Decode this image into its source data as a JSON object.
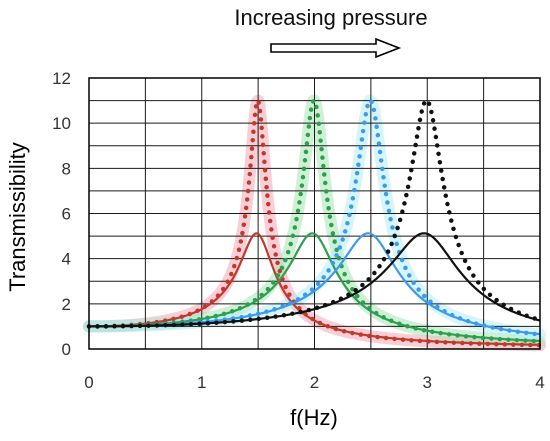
{
  "chart_data": {
    "type": "line",
    "annotation": "Increasing pressure",
    "xlabel": "f(Hz)",
    "ylabel": "Transmissibility",
    "xlim": [
      0,
      4
    ],
    "ylim": [
      0,
      12
    ],
    "x_ticks": [
      "0",
      "1",
      "2",
      "3",
      "4"
    ],
    "y_ticks": [
      "0",
      "2",
      "4",
      "6",
      "8",
      "10",
      "12"
    ],
    "grid": true,
    "series": [
      {
        "color": "#c0392b",
        "style": "dotted",
        "glow": "#f4a6b6",
        "peak_x": 1.5,
        "peak_y": 11.0
      },
      {
        "color": "#c0392b",
        "style": "solid",
        "peak_x": 1.5,
        "peak_y": 5.1
      },
      {
        "color": "#2e9e4f",
        "style": "dotted",
        "glow": "#a6e6b4",
        "peak_x": 2.0,
        "peak_y": 11.0
      },
      {
        "color": "#2e9e4f",
        "style": "solid",
        "peak_x": 2.0,
        "peak_y": 5.1
      },
      {
        "color": "#3d9be9",
        "style": "dotted",
        "glow": "#b3ecf8",
        "peak_x": 2.5,
        "peak_y": 11.0
      },
      {
        "color": "#3d9be9",
        "style": "solid",
        "peak_x": 2.5,
        "peak_y": 5.1
      },
      {
        "color": "#111111",
        "style": "dotted",
        "peak_x": 3.0,
        "peak_y": 11.0
      },
      {
        "color": "#111111",
        "style": "solid",
        "peak_x": 3.0,
        "peak_y": 5.1
      }
    ]
  }
}
